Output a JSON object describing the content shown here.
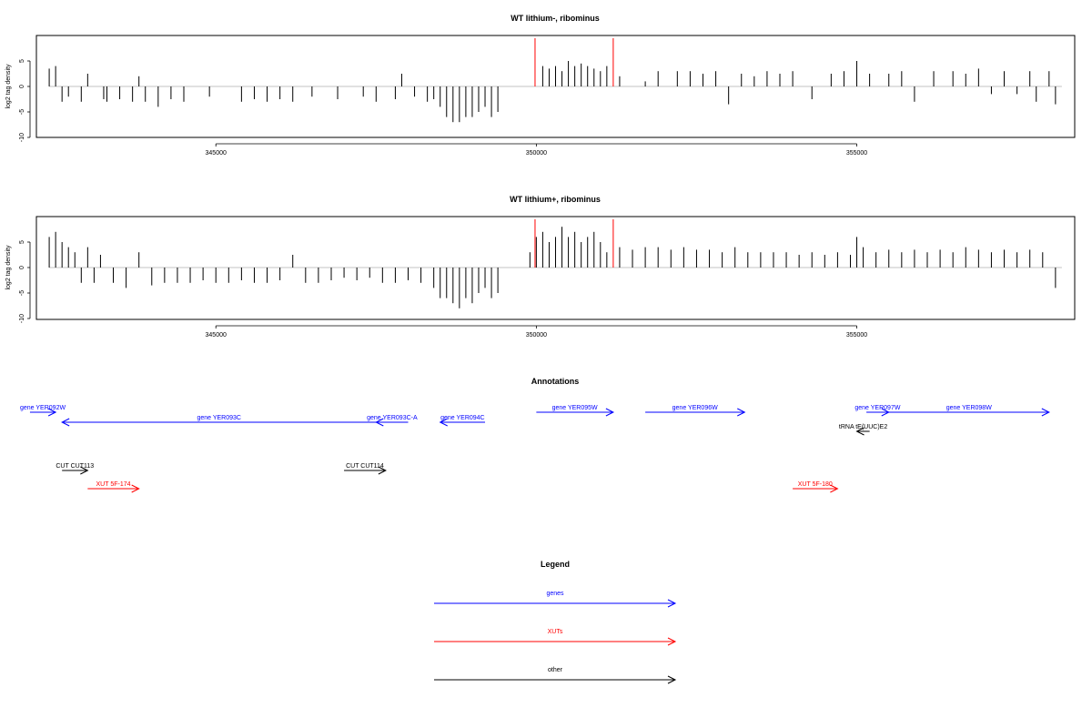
{
  "colors": {
    "gene": "#0000ff",
    "xut": "#ff0000",
    "other": "#000000",
    "marker": "#ff0000",
    "bars": "#000000",
    "frame": "#000000"
  },
  "chart_data": [
    {
      "type": "bar",
      "title": "WT lithium-, ribominus",
      "ylabel": "log2 tag density",
      "xlim": [
        342200,
        358400
      ],
      "ylim": [
        -10,
        10
      ],
      "yticks": [
        -10,
        -5,
        0,
        5
      ],
      "xticks": [
        345000,
        350000,
        355000
      ],
      "xtick_labels": [
        "345000",
        "350000",
        "355000"
      ],
      "grid": false,
      "markers": [
        349980,
        351200
      ],
      "series": [
        {
          "x": [
            342400,
            342500,
            342600,
            342700,
            342900,
            343000,
            343250,
            343300,
            343500,
            343700,
            343800,
            343900,
            344100,
            344300,
            344500,
            344900,
            345400,
            345600,
            345800,
            346000,
            346200,
            346500,
            346900,
            347300,
            347500,
            347800,
            347900,
            348100,
            348300,
            348400,
            348500,
            348600,
            348700,
            348800,
            348900,
            349000,
            349100,
            349200,
            349300,
            349400,
            350100,
            350200,
            350300,
            350400,
            350500,
            350600,
            350700,
            350800,
            350900,
            351000,
            351100,
            351300,
            351700,
            351900,
            352200,
            352400,
            352600,
            352800,
            353000,
            353200,
            353400,
            353600,
            353800,
            354000,
            354300,
            354600,
            354800,
            355000,
            355200,
            355500,
            355700,
            355900,
            356200,
            356500,
            356700,
            356900,
            357100,
            357300,
            357500,
            357700,
            357800,
            358000,
            358100
          ],
          "values": [
            3.5,
            4,
            -3,
            -2,
            -3,
            2.5,
            -2.5,
            -3,
            -2.5,
            -3,
            2,
            -3,
            -4,
            -2.5,
            -3,
            -2,
            -3,
            -2.5,
            -3,
            -2.5,
            -3,
            -2,
            -2.5,
            -2,
            -3,
            -2.5,
            2.5,
            -2,
            -3,
            -2.5,
            -4,
            -6,
            -7,
            -7,
            -6,
            -6,
            -5,
            -4,
            -6,
            -5,
            4,
            3.5,
            4,
            3,
            5,
            4,
            4.5,
            4,
            3.5,
            3,
            4,
            2,
            1,
            3,
            3,
            3,
            2.5,
            3,
            -3.5,
            2.5,
            2,
            3,
            2.5,
            3,
            -2.5,
            2.5,
            3,
            5,
            2.5,
            2.5,
            3,
            -3,
            3,
            3,
            2.5,
            3.5,
            -1.5,
            3,
            -1.5,
            3,
            -3,
            3,
            -3.5
          ]
        }
      ]
    },
    {
      "type": "bar",
      "title": "WT lithium+, ribominus",
      "ylabel": "log2 tag density",
      "xlim": [
        342200,
        358400
      ],
      "ylim": [
        -10,
        10
      ],
      "yticks": [
        -10,
        -5,
        0,
        5
      ],
      "xticks": [
        345000,
        350000,
        355000
      ],
      "xtick_labels": [
        "345000",
        "350000",
        "355000"
      ],
      "grid": false,
      "markers": [
        349980,
        351200
      ],
      "series": [
        {
          "x": [
            342400,
            342500,
            342600,
            342700,
            342800,
            342900,
            343000,
            343100,
            343200,
            343400,
            343600,
            343800,
            344000,
            344200,
            344400,
            344600,
            344800,
            345000,
            345200,
            345400,
            345600,
            345800,
            346000,
            346200,
            346400,
            346600,
            346800,
            347000,
            347200,
            347400,
            347600,
            347800,
            348000,
            348200,
            348400,
            348500,
            348600,
            348700,
            348800,
            348900,
            349000,
            349100,
            349200,
            349300,
            349400,
            349900,
            350000,
            350100,
            350200,
            350300,
            350400,
            350500,
            350600,
            350700,
            350800,
            350900,
            351000,
            351100,
            351300,
            351500,
            351700,
            351900,
            352100,
            352300,
            352500,
            352700,
            352900,
            353100,
            353300,
            353500,
            353700,
            353900,
            354100,
            354300,
            354500,
            354700,
            354900,
            355000,
            355100,
            355300,
            355500,
            355700,
            355900,
            356100,
            356300,
            356500,
            356700,
            356900,
            357100,
            357300,
            357500,
            357700,
            357900,
            358100
          ],
          "values": [
            6,
            7,
            5,
            4,
            3,
            -3,
            4,
            -3,
            2.5,
            -3,
            -4,
            3,
            -3.5,
            -3,
            -3,
            -3,
            -2.5,
            -3,
            -3,
            -2.5,
            -3,
            -3,
            -2.5,
            2.5,
            -3,
            -3,
            -2.5,
            -2,
            -2.5,
            -2,
            -3,
            -3,
            -2.5,
            -3,
            -4,
            -6,
            -6,
            -7,
            -8,
            -6,
            -7,
            -5,
            -4,
            -6,
            -5,
            3,
            6,
            7,
            5,
            6,
            8,
            6,
            7,
            5,
            6,
            7,
            5,
            3,
            4,
            3.5,
            4,
            4,
            3.5,
            4,
            3.5,
            3.5,
            3,
            4,
            3,
            3,
            3,
            3,
            2.5,
            3,
            2.5,
            3,
            2.5,
            6,
            4,
            3,
            3.5,
            3,
            3.5,
            3,
            3.5,
            3,
            4,
            3.5,
            3,
            3.5,
            3,
            3.5,
            3,
            -4
          ]
        }
      ]
    }
  ],
  "annotations": {
    "title": "Annotations",
    "genes": [
      {
        "label": "gene YER092W",
        "from": 342100,
        "to": 342500,
        "row": 1
      },
      {
        "label": "gene YER093C",
        "from": 347500,
        "to": 342600,
        "row": 2
      },
      {
        "label": "gene YER093C-A",
        "from": 348000,
        "to": 347500,
        "row": 2
      },
      {
        "label": "gene YER094C",
        "from": 349200,
        "to": 348500,
        "row": 2
      },
      {
        "label": "gene YER095W",
        "from": 350000,
        "to": 351200,
        "row": 1
      },
      {
        "label": "gene YER096W",
        "from": 351700,
        "to": 353250,
        "row": 1
      },
      {
        "label": "gene YER097W",
        "from": 355150,
        "to": 355500,
        "row": 1
      },
      {
        "label": "gene YER098W",
        "from": 355500,
        "to": 358000,
        "row": 1
      }
    ],
    "others": [
      {
        "label": "tRNA tE(UUC)E2",
        "from": 355200,
        "to": 355000,
        "row": 3
      },
      {
        "label": "CUT CUT113",
        "from": 342600,
        "to": 343000,
        "row": 4
      },
      {
        "label": "CUT CUT114",
        "from": 347000,
        "to": 347650,
        "row": 4
      }
    ],
    "xuts": [
      {
        "label": "XUT 5F-174",
        "from": 343000,
        "to": 343800,
        "row": 5
      },
      {
        "label": "XUT 5F-180",
        "from": 354000,
        "to": 354700,
        "row": 5
      }
    ]
  },
  "legend": {
    "title": "Legend",
    "items": [
      {
        "label": "genes",
        "kind": "gene"
      },
      {
        "label": "XUTs",
        "kind": "xut"
      },
      {
        "label": "other",
        "kind": "other"
      }
    ]
  }
}
